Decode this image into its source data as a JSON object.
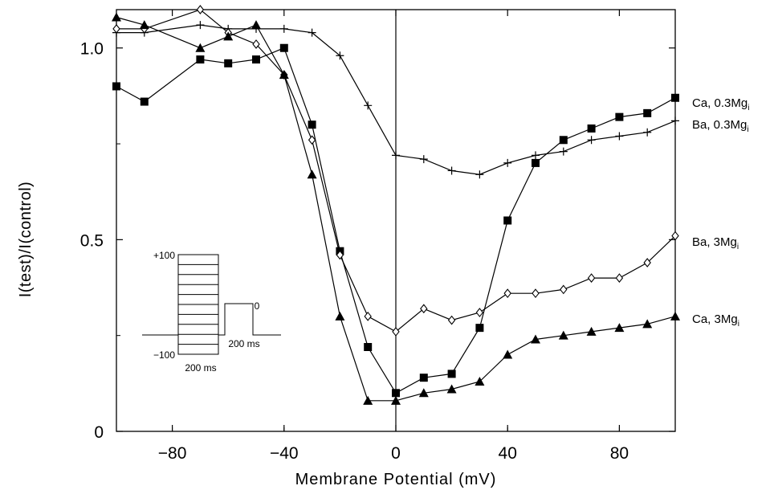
{
  "chart_data": {
    "type": "line",
    "xlabel": "Membrane Potential (mV)",
    "ylabel": "I(test)/I(control)",
    "xlim": [
      -100,
      100
    ],
    "ylim": [
      0,
      1.1
    ],
    "x_ticks": [
      -80,
      -40,
      0,
      40,
      80
    ],
    "y_ticks": [
      0,
      0.5,
      1.0
    ],
    "x_tick_labels": [
      "−80",
      "−40",
      "0",
      "40",
      "80"
    ],
    "y_tick_labels": [
      "0",
      "0.5",
      "1.0"
    ],
    "grid": false,
    "series": [
      {
        "label_main": "Ca, 0.3Mg",
        "label_sub": "i",
        "marker": "filled-square",
        "x": [
          -100,
          -90,
          -70,
          -60,
          -50,
          -40,
          -30,
          -20,
          -10,
          0,
          10,
          20,
          30,
          40,
          50,
          60,
          70,
          80,
          90,
          100
        ],
        "y": [
          0.9,
          0.86,
          0.97,
          0.96,
          0.97,
          1.0,
          0.8,
          0.47,
          0.22,
          0.1,
          0.14,
          0.15,
          0.27,
          0.55,
          0.7,
          0.76,
          0.79,
          0.82,
          0.83,
          0.87
        ]
      },
      {
        "label_main": "Ba, 0.3Mg",
        "label_sub": "i",
        "marker": "plus",
        "x": [
          -100,
          -90,
          -70,
          -60,
          -50,
          -40,
          -30,
          -20,
          -10,
          0,
          10,
          20,
          30,
          40,
          50,
          60,
          70,
          80,
          90,
          100
        ],
        "y": [
          1.04,
          1.04,
          1.06,
          1.05,
          1.05,
          1.05,
          1.04,
          0.98,
          0.85,
          0.72,
          0.71,
          0.68,
          0.67,
          0.7,
          0.72,
          0.73,
          0.76,
          0.77,
          0.78,
          0.81
        ]
      },
      {
        "label_main": "Ba, 3Mg",
        "label_sub": "i",
        "marker": "open-diamond",
        "x": [
          -100,
          -90,
          -70,
          -60,
          -50,
          -40,
          -30,
          -20,
          -10,
          0,
          10,
          20,
          30,
          40,
          50,
          60,
          70,
          80,
          90,
          100
        ],
        "y": [
          1.05,
          1.05,
          1.1,
          1.04,
          1.01,
          0.93,
          0.76,
          0.46,
          0.3,
          0.26,
          0.32,
          0.29,
          0.31,
          0.36,
          0.36,
          0.37,
          0.4,
          0.4,
          0.44,
          0.51
        ]
      },
      {
        "label_main": "Ca, 3Mg",
        "label_sub": "i",
        "marker": "filled-triangle",
        "x": [
          -100,
          -90,
          -70,
          -60,
          -50,
          -40,
          -30,
          -20,
          -10,
          0,
          10,
          20,
          30,
          40,
          50,
          60,
          70,
          80,
          90,
          100
        ],
        "y": [
          1.08,
          1.06,
          1.0,
          1.03,
          1.06,
          0.93,
          0.67,
          0.3,
          0.08,
          0.08,
          0.1,
          0.11,
          0.13,
          0.2,
          0.24,
          0.25,
          0.26,
          0.27,
          0.28,
          0.3
        ]
      }
    ],
    "inset": {
      "top_label": "+100",
      "bottom_label": "−100",
      "prepulse_label": "200 ms",
      "test_duration_label": "200 ms",
      "test_level_label": "0"
    }
  }
}
